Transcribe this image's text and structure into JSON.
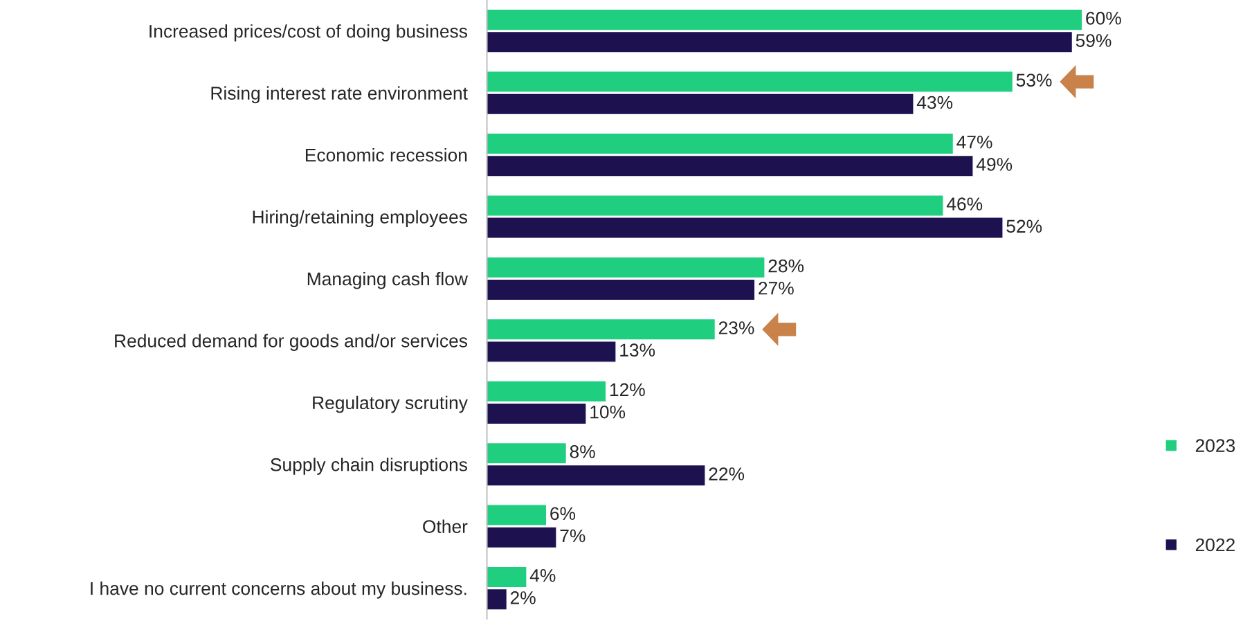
{
  "chart_data": {
    "type": "bar",
    "orientation": "horizontal",
    "legend": "right",
    "grid": false,
    "categories": [
      "Increased prices/cost of doing business",
      "Rising interest rate environment",
      "Economic recession",
      "Hiring/retaining employees",
      "Managing cash flow",
      "Reduced demand for goods and/or services",
      "Regulatory scrutiny",
      "Supply chain disruptions",
      "Other",
      "I have no current concerns about my business."
    ],
    "series": [
      {
        "name": "2023",
        "color": "#20ce80",
        "values": [
          60,
          53,
          47,
          46,
          28,
          23,
          12,
          8,
          6,
          4
        ],
        "value_labels": [
          "60%",
          "53%",
          "47%",
          "46%",
          "28%",
          "23%",
          "12%",
          "8%",
          "6%",
          "4%"
        ]
      },
      {
        "name": "2022",
        "color": "#1e1150",
        "values": [
          59,
          43,
          49,
          52,
          27,
          13,
          10,
          22,
          7,
          2
        ],
        "value_labels": [
          "59%",
          "43%",
          "49%",
          "52%",
          "27%",
          "13%",
          "10%",
          "22%",
          "7%",
          "2%"
        ]
      }
    ]
  }
}
